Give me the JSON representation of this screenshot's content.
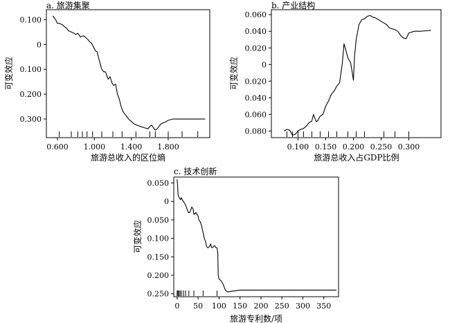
{
  "figure": {
    "panels": [
      {
        "title": "a. 旅游集聚",
        "xlabel": "旅游总收入的区位熵",
        "ylabel": "可变效应"
      },
      {
        "title": "b. 产业结构",
        "xlabel": "旅游总收入占GDP比例",
        "ylabel": "可变效应"
      },
      {
        "title": "c. 技术创新",
        "xlabel": "旅游专利数/项",
        "ylabel": "可变效应"
      }
    ]
  },
  "chart_data": [
    {
      "type": "line",
      "title": "a. 旅游集聚",
      "xlabel": "旅游总收入的区位熵",
      "ylabel": "可变效应",
      "xlim": [
        0.48,
        2.25
      ],
      "ylim": [
        -0.375,
        0.14
      ],
      "xticks": [
        0.6,
        1.0,
        1.4,
        1.8
      ],
      "xtick_labels": [
        "0.600",
        "1.000",
        "1.400",
        "1.800"
      ],
      "yticks": [
        0.1,
        0.0,
        -0.1,
        -0.2,
        -0.3
      ],
      "ytick_labels": [
        "0.100",
        "0",
        "0.100",
        "0.200",
        "0.300"
      ],
      "x": [
        0.55,
        0.58,
        0.6,
        0.62,
        0.65,
        0.68,
        0.7,
        0.72,
        0.75,
        0.78,
        0.8,
        0.82,
        0.85,
        0.88,
        0.9,
        0.93,
        0.95,
        0.97,
        0.99,
        1.01,
        1.03,
        1.05,
        1.08,
        1.1,
        1.12,
        1.15,
        1.17,
        1.19,
        1.21,
        1.23,
        1.25,
        1.27,
        1.29,
        1.31,
        1.33,
        1.35,
        1.37,
        1.4,
        1.43,
        1.46,
        1.5,
        1.54,
        1.58,
        1.6,
        1.62,
        1.64,
        1.66,
        1.68,
        1.7,
        1.72,
        1.75,
        1.78,
        1.8,
        1.85,
        1.9,
        2.0,
        2.1,
        2.2
      ],
      "y": [
        0.115,
        0.1,
        0.085,
        0.085,
        0.08,
        0.07,
        0.065,
        0.055,
        0.05,
        0.045,
        0.04,
        0.045,
        0.03,
        0.035,
        0.03,
        0.02,
        0.01,
        0.005,
        -0.01,
        -0.025,
        -0.03,
        -0.06,
        -0.1,
        -0.11,
        -0.11,
        -0.14,
        -0.13,
        -0.155,
        -0.165,
        -0.16,
        -0.2,
        -0.22,
        -0.25,
        -0.27,
        -0.28,
        -0.29,
        -0.3,
        -0.31,
        -0.32,
        -0.325,
        -0.33,
        -0.335,
        -0.34,
        -0.33,
        -0.325,
        -0.335,
        -0.345,
        -0.34,
        -0.33,
        -0.32,
        -0.315,
        -0.31,
        -0.305,
        -0.3,
        -0.3,
        -0.3,
        -0.3,
        -0.3
      ],
      "rug": [
        0.62,
        0.75,
        0.82,
        0.87,
        0.92,
        0.98,
        1.08,
        1.2,
        1.3,
        1.45,
        1.6,
        1.66,
        1.8,
        1.95,
        2.12
      ]
    },
    {
      "type": "line",
      "title": "b. 产业结构",
      "xlabel": "旅游总收入占GDP比例",
      "ylabel": "可变效应",
      "xlim": [
        0.052,
        0.358
      ],
      "ylim": [
        -0.088,
        0.066
      ],
      "xticks": [
        0.1,
        0.15,
        0.2,
        0.25,
        0.3
      ],
      "xtick_labels": [
        "0.100",
        "0.150",
        "0.200",
        "0.250",
        "0.300"
      ],
      "yticks": [
        0.06,
        0.04,
        0.02,
        0.0,
        -0.02,
        -0.04,
        -0.06,
        -0.08
      ],
      "ytick_labels": [
        "0.060",
        "0.040",
        "0.020",
        "0",
        "0.020",
        "0.040",
        "0.060",
        "0.080"
      ],
      "x": [
        0.075,
        0.08,
        0.085,
        0.09,
        0.095,
        0.1,
        0.105,
        0.11,
        0.115,
        0.12,
        0.125,
        0.128,
        0.13,
        0.133,
        0.136,
        0.14,
        0.145,
        0.15,
        0.155,
        0.16,
        0.165,
        0.17,
        0.175,
        0.18,
        0.183,
        0.186,
        0.19,
        0.195,
        0.198,
        0.2,
        0.202,
        0.205,
        0.21,
        0.215,
        0.22,
        0.225,
        0.23,
        0.235,
        0.24,
        0.245,
        0.25,
        0.255,
        0.26,
        0.265,
        0.27,
        0.275,
        0.28,
        0.285,
        0.29,
        0.295,
        0.3,
        0.31,
        0.32,
        0.34
      ],
      "y": [
        -0.08,
        -0.078,
        -0.079,
        -0.085,
        -0.084,
        -0.08,
        -0.078,
        -0.077,
        -0.074,
        -0.07,
        -0.068,
        -0.06,
        -0.064,
        -0.069,
        -0.067,
        -0.062,
        -0.06,
        -0.05,
        -0.044,
        -0.036,
        -0.032,
        -0.026,
        -0.022,
        0.002,
        0.025,
        0.018,
        0.008,
        0.002,
        -0.01,
        -0.019,
        0.01,
        0.03,
        0.048,
        0.054,
        0.055,
        0.058,
        0.059,
        0.057,
        0.056,
        0.054,
        0.052,
        0.05,
        0.048,
        0.044,
        0.043,
        0.042,
        0.04,
        0.035,
        0.032,
        0.031,
        0.038,
        0.04,
        0.04,
        0.041
      ],
      "rug": [
        0.08,
        0.09,
        0.1,
        0.11,
        0.125,
        0.14,
        0.155,
        0.17,
        0.19,
        0.205,
        0.22,
        0.255,
        0.275,
        0.3
      ]
    },
    {
      "type": "line",
      "title": "c. 技术创新",
      "xlabel": "旅游专利数/项",
      "ylabel": "可变效应",
      "xlim": [
        -8,
        385
      ],
      "ylim": [
        -0.258,
        0.066
      ],
      "xticks": [
        0,
        50,
        100,
        150,
        200,
        250,
        300,
        350
      ],
      "xtick_labels": [
        "0",
        "50",
        "100",
        "150",
        "200",
        "250",
        "300",
        "350"
      ],
      "yticks": [
        0.05,
        0.0,
        -0.05,
        -0.1,
        -0.15,
        -0.2,
        -0.25
      ],
      "ytick_labels": [
        "0.050",
        "0",
        "0.050",
        "0.100",
        "0.150",
        "0.200",
        "0.250"
      ],
      "x": [
        0,
        1,
        2,
        3,
        5,
        8,
        10,
        12,
        15,
        18,
        20,
        22,
        25,
        27,
        30,
        32,
        35,
        38,
        40,
        45,
        50,
        52,
        55,
        58,
        60,
        62,
        65,
        68,
        70,
        72,
        75,
        78,
        80,
        82,
        85,
        88,
        90,
        92,
        95,
        97,
        98,
        100,
        105,
        110,
        115,
        120,
        150,
        200,
        250,
        300,
        380
      ],
      "y": [
        0.06,
        0.045,
        0.02,
        0.015,
        0.01,
        0.005,
        0.01,
        0.005,
        0.0,
        -0.005,
        -0.01,
        -0.015,
        -0.025,
        -0.03,
        -0.03,
        -0.025,
        -0.015,
        -0.02,
        -0.035,
        -0.03,
        -0.04,
        -0.05,
        -0.055,
        -0.065,
        -0.075,
        -0.085,
        -0.1,
        -0.11,
        -0.12,
        -0.125,
        -0.125,
        -0.12,
        -0.115,
        -0.125,
        -0.125,
        -0.12,
        -0.12,
        -0.125,
        -0.125,
        -0.14,
        -0.2,
        -0.21,
        -0.215,
        -0.225,
        -0.24,
        -0.245,
        -0.24,
        -0.24,
        -0.24,
        -0.24,
        -0.24
      ],
      "rug": [
        0,
        2,
        4,
        7,
        10,
        15,
        20,
        28,
        40,
        62,
        95
      ]
    }
  ]
}
